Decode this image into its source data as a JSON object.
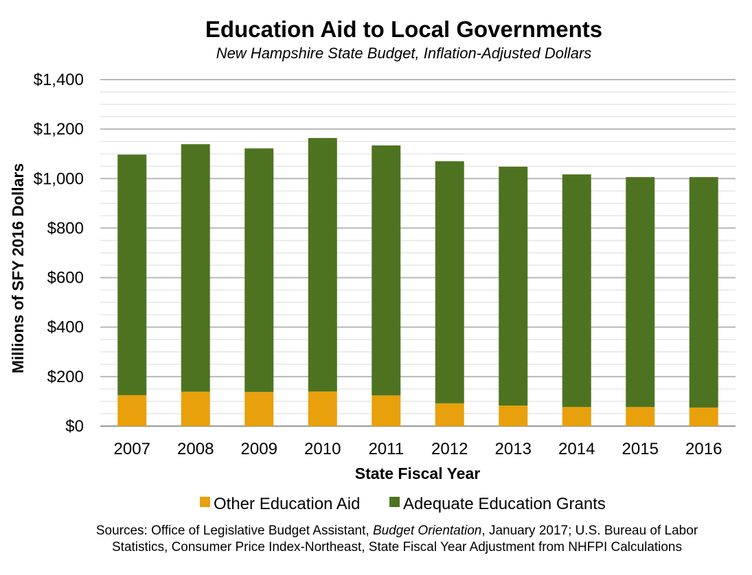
{
  "chart_data": {
    "type": "bar",
    "stacked": true,
    "title": "Education Aid to Local Governments",
    "subtitle": "New Hampshire State Budget, Inflation-Adjusted Dollars",
    "xlabel": "State Fiscal Year",
    "ylabel": "Millions of SFY 2016 Dollars",
    "categories": [
      "2007",
      "2008",
      "2009",
      "2010",
      "2011",
      "2012",
      "2013",
      "2014",
      "2015",
      "2016"
    ],
    "series": [
      {
        "name": "Other Education Aid",
        "color": "#E8A00C",
        "values": [
          125,
          139,
          138,
          140,
          124,
          92,
          83,
          77,
          77,
          75
        ]
      },
      {
        "name": "Adequate Education Grants",
        "color": "#4E7320",
        "values": [
          972,
          1000,
          984,
          1024,
          1010,
          978,
          965,
          940,
          929,
          931
        ]
      }
    ],
    "ylim": [
      0,
      1400
    ],
    "yticks": [
      0,
      200,
      400,
      600,
      800,
      1000,
      1200,
      1400
    ],
    "ytick_labels": [
      "$0",
      "$200",
      "$400",
      "$600",
      "$800",
      "$1,000",
      "$1,200",
      "$1,400"
    ],
    "grid": "major and minor horizontal",
    "legend": "bottom",
    "source_prefix": "Sources: Office of Legislative Budget Assistant, ",
    "source_italic": "Budget Orientation",
    "source_suffix": ", January 2017; U.S. Bureau of Labor",
    "source_line2": "Statistics, Consumer Price Index-Northeast, State Fiscal Year Adjustment from NHFPI Calculations"
  }
}
